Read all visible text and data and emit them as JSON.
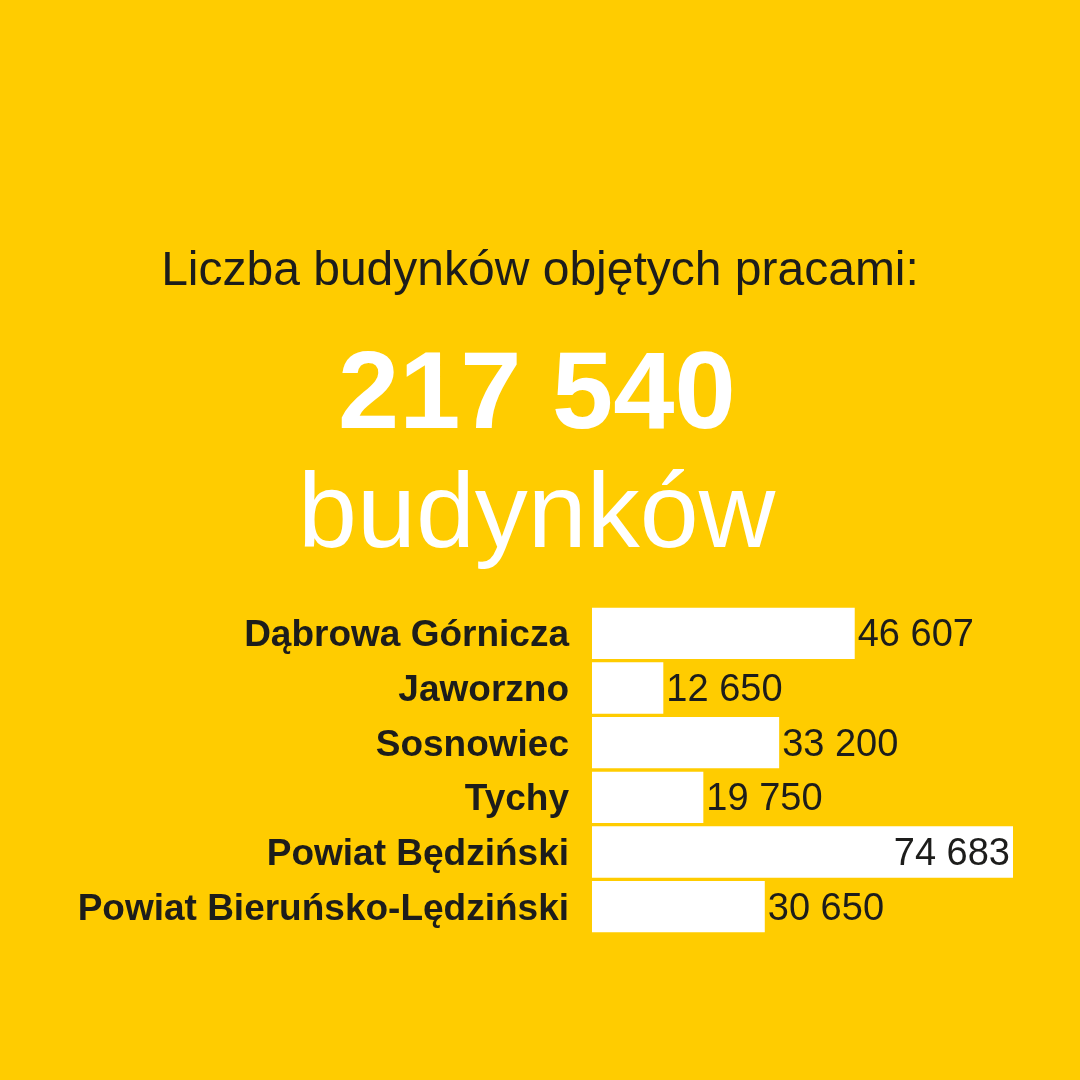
{
  "chart_data": {
    "type": "bar",
    "orientation": "horizontal",
    "title": "Liczba budynków objętych pracami:",
    "annotations": [
      "217 540",
      "budynków"
    ],
    "categories": [
      "Dąbrowa Górnicza",
      "Jaworzno",
      "Sosnowiec",
      "Tychy",
      "Powiat Będziński",
      "Powiat Bieruńsko-Lędziński"
    ],
    "values": [
      46607,
      12650,
      33200,
      19750,
      74683,
      30650
    ],
    "color": "#ffffff",
    "data_labels": true
  }
}
